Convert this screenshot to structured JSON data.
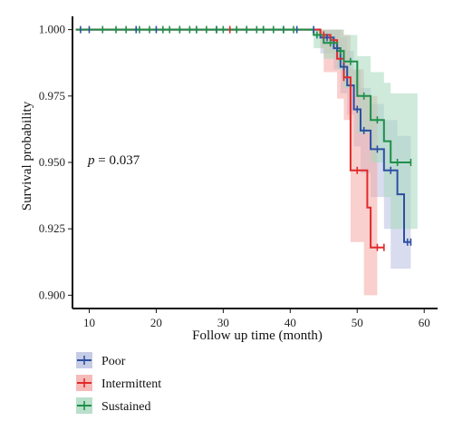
{
  "chart_data": {
    "type": "line",
    "subtype": "kaplan-meier",
    "xlabel": "Follow up time (month)",
    "ylabel": "Survival probability",
    "xlim": [
      7.5,
      62
    ],
    "ylim": [
      0.895,
      1.005
    ],
    "x_ticks": [
      10,
      20,
      30,
      40,
      50,
      60
    ],
    "x_tick_labels": [
      "10",
      "20",
      "30",
      "40",
      "50",
      "60"
    ],
    "y_ticks": [
      0.9,
      0.925,
      0.95,
      0.975,
      1.0
    ],
    "y_tick_labels": [
      "0.900",
      "0.925",
      "0.950",
      "0.975",
      "1.000"
    ],
    "annotation": {
      "prefix": "p",
      "text": " = 0.037"
    },
    "grid": false,
    "legend_position": "bottom",
    "series": [
      {
        "name": "Poor",
        "color": "#2d4fa3",
        "band_color": "#b8bfe0",
        "steps": [
          [
            8,
            1.0
          ],
          [
            44.5,
            0.997
          ],
          [
            46.5,
            0.993
          ],
          [
            47.5,
            0.986
          ],
          [
            48.5,
            0.979
          ],
          [
            49.5,
            0.97
          ],
          [
            50.5,
            0.962
          ],
          [
            52,
            0.955
          ],
          [
            54,
            0.947
          ],
          [
            56,
            0.938
          ],
          [
            57,
            0.92
          ],
          [
            58,
            0.92
          ]
        ],
        "band": [
          [
            8,
            1.0,
            1.0
          ],
          [
            44.5,
            0.991,
            1.0
          ],
          [
            46.5,
            0.985,
            1.0
          ],
          [
            47.5,
            0.976,
            0.997
          ],
          [
            48.5,
            0.968,
            0.992
          ],
          [
            49.5,
            0.956,
            0.985
          ],
          [
            50.5,
            0.946,
            0.978
          ],
          [
            52,
            0.937,
            0.972
          ],
          [
            54,
            0.925,
            0.966
          ],
          [
            55,
            0.91,
            0.966
          ],
          [
            56,
            0.91,
            0.96
          ],
          [
            57,
            0.91,
            0.96
          ]
        ],
        "censor_x": [
          8.7,
          10,
          17,
          20,
          23.5,
          26,
          29,
          33.5,
          36,
          39,
          41,
          43.5,
          45.5,
          47,
          48,
          50,
          51,
          53,
          55,
          57.5,
          58
        ]
      },
      {
        "name": "Intermittent",
        "color": "#e02a2a",
        "band_color": "#f4a9a6",
        "steps": [
          [
            8,
            1.0
          ],
          [
            44.5,
            0.998
          ],
          [
            46,
            0.996
          ],
          [
            47,
            0.989
          ],
          [
            48,
            0.982
          ],
          [
            49,
            0.947
          ],
          [
            51.5,
            0.933
          ],
          [
            52,
            0.918
          ],
          [
            54,
            0.918
          ]
        ],
        "band": [
          [
            8,
            1.0,
            1.0
          ],
          [
            44.5,
            0.993,
            1.0
          ],
          [
            45,
            0.984,
            1.0
          ],
          [
            47,
            0.974,
            1.0
          ],
          [
            48,
            0.966,
            0.998
          ],
          [
            49,
            0.92,
            0.985
          ],
          [
            51,
            0.9,
            0.975
          ],
          [
            52,
            0.9,
            0.975
          ]
        ],
        "censor_x": [
          31,
          45,
          48,
          50,
          53,
          54
        ]
      },
      {
        "name": "Sustained",
        "color": "#1f8f4a",
        "band_color": "#a8d8be",
        "steps": [
          [
            8,
            1.0
          ],
          [
            43.5,
            0.998
          ],
          [
            45,
            0.995
          ],
          [
            47,
            0.992
          ],
          [
            48,
            0.988
          ],
          [
            50,
            0.975
          ],
          [
            52,
            0.966
          ],
          [
            54,
            0.958
          ],
          [
            55,
            0.95
          ],
          [
            58,
            0.95
          ]
        ],
        "band": [
          [
            8,
            1.0,
            1.0
          ],
          [
            43.5,
            0.993,
            1.0
          ],
          [
            45,
            0.989,
            1.0
          ],
          [
            47,
            0.985,
            1.0
          ],
          [
            48,
            0.978,
            0.998
          ],
          [
            50,
            0.961,
            0.99
          ],
          [
            52,
            0.95,
            0.984
          ],
          [
            54,
            0.937,
            0.98
          ],
          [
            55,
            0.925,
            0.976
          ],
          [
            58,
            0.925,
            0.976
          ]
        ],
        "censor_x": [
          12,
          14,
          15.5,
          17.5,
          19,
          21,
          22,
          23.5,
          25,
          26,
          27.5,
          29,
          30,
          32,
          33.5,
          35,
          36,
          37.5,
          39,
          40.5,
          44,
          46,
          47.5,
          49,
          51,
          53,
          56,
          58
        ]
      }
    ]
  }
}
